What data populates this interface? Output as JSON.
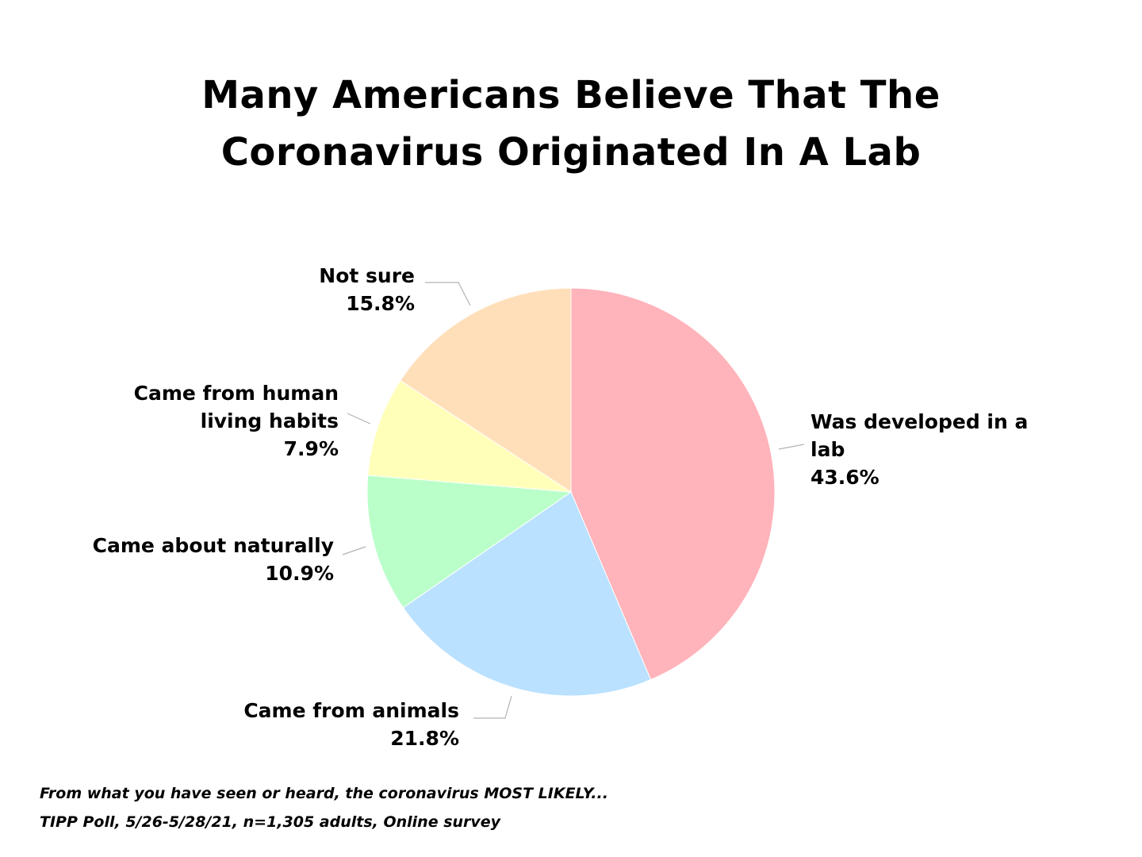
{
  "chart_data": {
    "type": "pie",
    "title_lines": [
      "Many Americans Believe That The",
      "Coronavirus Originated In A Lab"
    ],
    "slices": [
      {
        "label_lines": [
          "Was developed in a",
          "lab"
        ],
        "value": 43.6,
        "value_label": "43.6%",
        "color": "#FFB3BA"
      },
      {
        "label_lines": [
          "Came from animals"
        ],
        "value": 21.8,
        "value_label": "21.8%",
        "color": "#BAE1FF"
      },
      {
        "label_lines": [
          "Came about naturally"
        ],
        "value": 10.9,
        "value_label": "10.9%",
        "color": "#BAFFC9"
      },
      {
        "label_lines": [
          "Came from human",
          "living habits"
        ],
        "value": 7.9,
        "value_label": "7.9%",
        "color": "#FFFFBA"
      },
      {
        "label_lines": [
          "Not sure"
        ],
        "value": 15.8,
        "value_label": "15.8%",
        "color": "#FFDFBA"
      }
    ],
    "start_angle": "12 o'clock",
    "direction": "clockwise"
  },
  "footnotes": {
    "question": "From what you have seen or heard, the coronavirus MOST LIKELY...",
    "source": "TIPP Poll, 5/26-5/28/21, n=1,305 adults, Online survey"
  }
}
